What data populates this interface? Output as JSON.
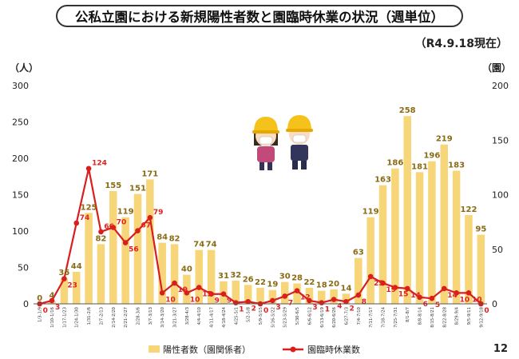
{
  "header": {
    "title": "公私立園における新規陽性者数と園臨時休業の状況（週単位）",
    "as_of": "（R4.9.18現在）",
    "unit_left": "（人）",
    "unit_right": "（園）",
    "page_number": "12"
  },
  "colors": {
    "bar": "#f7d67a",
    "line": "#d81e1e",
    "bar_label": "#8a6a14",
    "line_label": "#e02020"
  },
  "chart_data": {
    "type": "bar",
    "categories": [
      "1/3-1/9",
      "1/10-1/16",
      "1/17-1/23",
      "1/24-1/30",
      "1/31-2/6",
      "2/7-2/13",
      "2/14-2/20",
      "2/21-2/27",
      "2/28-3/6",
      "3/7-3/13",
      "3/14-3/20",
      "3/21-3/27",
      "3/28-4/3",
      "4/4-4/10",
      "4/11-4/17",
      "4/18-4/24",
      "4/25-5/1",
      "5/2-5/8",
      "5/9-5/15",
      "5/16-5/22",
      "5/23-5/29",
      "5/30-6/5",
      "6/6-6/12",
      "6/13-6/19",
      "6/20-6/26",
      "6/27-7/3",
      "7/4-7/10",
      "7/11-7/17",
      "7/18-7/24",
      "7/25-7/31",
      "8/1-8/7",
      "8/8-8/14",
      "8/15-8/21",
      "8/22-8/28",
      "8/29-9/4",
      "9/5-9/11",
      "9/12-9/18"
    ],
    "series": [
      {
        "name": "陽性者数（園関係者）",
        "type": "bar",
        "axis": "left",
        "values": [
          0,
          4,
          35,
          44,
          125,
          82,
          155,
          119,
          151,
          171,
          84,
          82,
          40,
          74,
          74,
          31,
          32,
          26,
          22,
          19,
          30,
          28,
          22,
          18,
          20,
          14,
          63,
          119,
          163,
          186,
          258,
          181,
          196,
          219,
          183,
          122,
          95
        ]
      },
      {
        "name": "園臨時休業数",
        "type": "line",
        "axis": "right",
        "values": [
          0,
          3,
          23,
          74,
          124,
          66,
          70,
          56,
          67,
          79,
          10,
          19,
          10,
          15,
          9,
          9,
          1,
          2,
          0,
          3,
          7,
          12,
          3,
          1,
          4,
          2,
          8,
          25,
          19,
          15,
          14,
          6,
          5,
          14,
          10,
          10,
          0
        ]
      }
    ],
    "ylim": [
      0,
      300
    ],
    "y2lim": [
      0,
      200
    ],
    "yticks": [
      0,
      50,
      100,
      150,
      200,
      250,
      300
    ],
    "y2ticks": [
      0,
      50,
      100,
      150,
      200
    ],
    "grid": false,
    "legend": "bottom"
  }
}
